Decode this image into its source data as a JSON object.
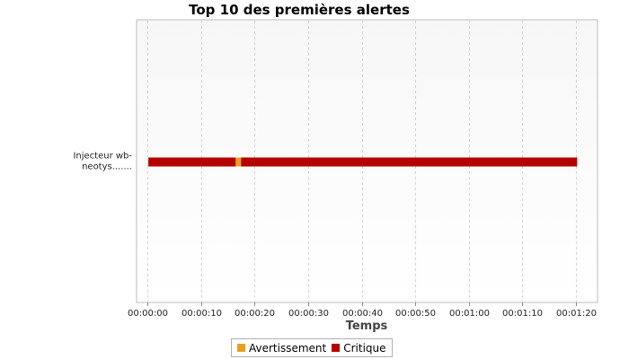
{
  "chart_data": {
    "type": "timeline",
    "title": "Top 10 des premières alertes",
    "xlabel": "Temps",
    "ylabel": "",
    "x_unit": "seconds",
    "xlim": [
      -2,
      84
    ],
    "x_ticks": [
      0,
      10,
      20,
      30,
      40,
      50,
      60,
      70,
      80
    ],
    "x_tick_labels": [
      "00:00:00",
      "00:00:10",
      "00:00:20",
      "00:00:30",
      "00:00:40",
      "00:00:50",
      "00:01:00",
      "00:01:10",
      "00:01:20"
    ],
    "categories": [
      {
        "lines": [
          "Injecteur wb-",
          "neotys......."
        ]
      }
    ],
    "series": [
      {
        "name": "Avertissement",
        "color": "#e8a020",
        "segments": [
          {
            "category": 0,
            "start": 16.5,
            "end": 17.5
          }
        ]
      },
      {
        "name": "Critique",
        "color": "#b50000",
        "segments": [
          {
            "category": 0,
            "start": 0.2,
            "end": 16.5
          },
          {
            "category": 0,
            "start": 17.5,
            "end": 80.2
          }
        ]
      }
    ],
    "grid": true,
    "legend_position": "bottom"
  }
}
